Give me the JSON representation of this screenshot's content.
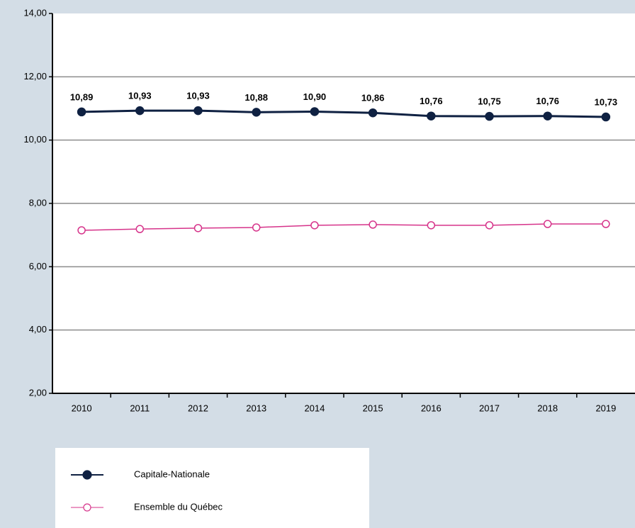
{
  "chart_data": {
    "type": "line",
    "categories": [
      "2010",
      "2011",
      "2012",
      "2013",
      "2014",
      "2015",
      "2016",
      "2017",
      "2018",
      "2019"
    ],
    "series": [
      {
        "name": "Capitale-Nationale",
        "color": "#0f2142",
        "marker": "filled",
        "values": [
          10.89,
          10.93,
          10.93,
          10.88,
          10.9,
          10.86,
          10.76,
          10.75,
          10.76,
          10.73
        ],
        "value_labels": [
          "10,89",
          "10,93",
          "10,93",
          "10,88",
          "10,90",
          "10,86",
          "10,76",
          "10,75",
          "10,76",
          "10,73"
        ]
      },
      {
        "name": "Ensemble du Québec",
        "color": "#d6338a",
        "marker": "hollow",
        "values": [
          7.15,
          7.19,
          7.22,
          7.24,
          7.31,
          7.33,
          7.31,
          7.31,
          7.35,
          7.35
        ]
      }
    ],
    "ylim": [
      2,
      14
    ],
    "yticks": [
      {
        "value": 2,
        "label": "2,00"
      },
      {
        "value": 4,
        "label": "4,00"
      },
      {
        "value": 6,
        "label": "6,00"
      },
      {
        "value": 8,
        "label": "8,00"
      },
      {
        "value": 10,
        "label": "10,00"
      },
      {
        "value": 12,
        "label": "12,00"
      },
      {
        "value": 14,
        "label": "14,00"
      }
    ],
    "grid": true
  }
}
